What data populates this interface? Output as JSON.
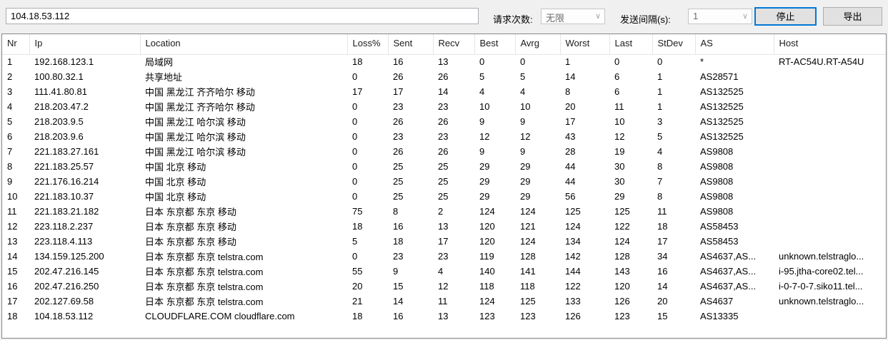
{
  "toolbar": {
    "target_input_value": "104.18.53.112",
    "request_count_label": "请求次数:",
    "request_count_value": "无限",
    "interval_label": "发送间隔(s):",
    "interval_value": "1",
    "stop_button": "停止",
    "export_button": "导出",
    "chevron_glyph": "∨"
  },
  "colors": {
    "window_bg": "#f0f0f0",
    "table_bg": "#ffffff",
    "table_border": "#828790",
    "header_separator": "#e5e5e5",
    "focused_button_border": "#0078d7",
    "button_bg": "#e1e1e1",
    "disabled_text": "#6d6d6d"
  },
  "table": {
    "columns": [
      "Nr",
      "Ip",
      "Location",
      "Loss%",
      "Sent",
      "Recv",
      "Best",
      "Avrg",
      "Worst",
      "Last",
      "StDev",
      "AS",
      "Host"
    ],
    "rows": [
      [
        "1",
        "192.168.123.1",
        "局域网",
        "18",
        "16",
        "13",
        "0",
        "0",
        "1",
        "0",
        "0",
        "*",
        "RT-AC54U.RT-A54U"
      ],
      [
        "2",
        "100.80.32.1",
        "共享地址",
        "0",
        "26",
        "26",
        "5",
        "5",
        "14",
        "6",
        "1",
        "AS28571",
        ""
      ],
      [
        "3",
        "111.41.80.81",
        "中国 黑龙江 齐齐哈尔 移动",
        "17",
        "17",
        "14",
        "4",
        "4",
        "8",
        "6",
        "1",
        "AS132525",
        ""
      ],
      [
        "4",
        "218.203.47.2",
        "中国 黑龙江 齐齐哈尔 移动",
        "0",
        "23",
        "23",
        "10",
        "10",
        "20",
        "11",
        "1",
        "AS132525",
        ""
      ],
      [
        "5",
        "218.203.9.5",
        "中国 黑龙江 哈尔滨 移动",
        "0",
        "26",
        "26",
        "9",
        "9",
        "17",
        "10",
        "3",
        "AS132525",
        ""
      ],
      [
        "6",
        "218.203.9.6",
        "中国 黑龙江 哈尔滨 移动",
        "0",
        "23",
        "23",
        "12",
        "12",
        "43",
        "12",
        "5",
        "AS132525",
        ""
      ],
      [
        "7",
        "221.183.27.161",
        "中国 黑龙江 哈尔滨 移动",
        "0",
        "26",
        "26",
        "9",
        "9",
        "28",
        "19",
        "4",
        "AS9808",
        ""
      ],
      [
        "8",
        "221.183.25.57",
        "中国 北京 移动",
        "0",
        "25",
        "25",
        "29",
        "29",
        "44",
        "30",
        "8",
        "AS9808",
        ""
      ],
      [
        "9",
        "221.176.16.214",
        "中国 北京 移动",
        "0",
        "25",
        "25",
        "29",
        "29",
        "44",
        "30",
        "7",
        "AS9808",
        ""
      ],
      [
        "10",
        "221.183.10.37",
        "中国 北京 移动",
        "0",
        "25",
        "25",
        "29",
        "29",
        "56",
        "29",
        "8",
        "AS9808",
        ""
      ],
      [
        "11",
        "221.183.21.182",
        "日本 东京都 东京 移动",
        "75",
        "8",
        "2",
        "124",
        "124",
        "125",
        "125",
        "11",
        "AS9808",
        ""
      ],
      [
        "12",
        "223.118.2.237",
        "日本 东京都 东京 移动",
        "18",
        "16",
        "13",
        "120",
        "121",
        "124",
        "122",
        "18",
        "AS58453",
        ""
      ],
      [
        "13",
        "223.118.4.113",
        "日本 东京都 东京 移动",
        "5",
        "18",
        "17",
        "120",
        "124",
        "134",
        "124",
        "17",
        "AS58453",
        ""
      ],
      [
        "14",
        "134.159.125.200",
        "日本 东京都 东京 telstra.com",
        "0",
        "23",
        "23",
        "119",
        "128",
        "142",
        "128",
        "34",
        "AS4637,AS...",
        "unknown.telstraglo..."
      ],
      [
        "15",
        "202.47.216.145",
        "日本 东京都 东京 telstra.com",
        "55",
        "9",
        "4",
        "140",
        "141",
        "144",
        "143",
        "16",
        "AS4637,AS...",
        "i-95.jtha-core02.tel..."
      ],
      [
        "16",
        "202.47.216.250",
        "日本 东京都 东京 telstra.com",
        "20",
        "15",
        "12",
        "118",
        "118",
        "122",
        "120",
        "14",
        "AS4637,AS...",
        "i-0-7-0-7.siko11.tel..."
      ],
      [
        "17",
        "202.127.69.58",
        "日本 东京都 东京 telstra.com",
        "21",
        "14",
        "11",
        "124",
        "125",
        "133",
        "126",
        "20",
        "AS4637",
        "unknown.telstraglo..."
      ],
      [
        "18",
        "104.18.53.112",
        "CLOUDFLARE.COM cloudflare.com",
        "18",
        "16",
        "13",
        "123",
        "123",
        "126",
        "123",
        "15",
        "AS13335",
        ""
      ]
    ]
  }
}
